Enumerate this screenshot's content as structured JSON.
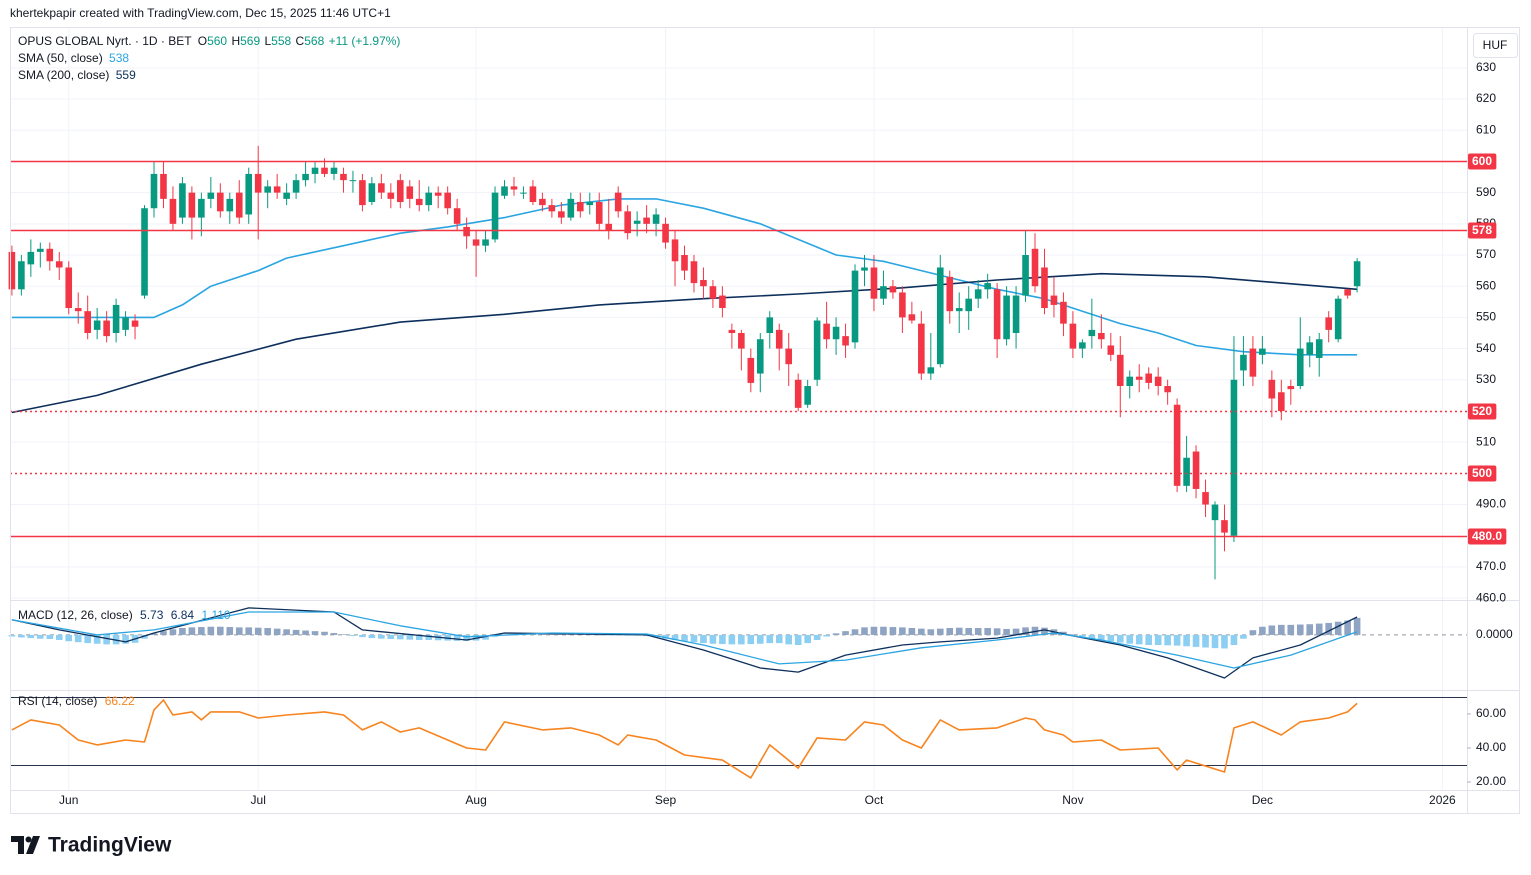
{
  "header": "khertekpapir created with TradingView.com, Dec 15, 2025 11:46 UTC+1",
  "chart_data": [
    {
      "type": "candlestick",
      "title": "OPUS GLOBAL Nyrt. · 1D · BET",
      "legend_letters": [
        "O",
        "H",
        "L",
        "C"
      ],
      "change_label": "+11 (+1.97%)",
      "currency": "HUF",
      "up_color": "#089981",
      "down_color": "#f23645",
      "open": [
        571,
        559,
        567,
        571,
        572,
        568,
        566,
        553,
        552,
        546,
        549,
        545,
        546,
        549,
        557,
        585,
        596,
        588,
        582,
        590,
        582,
        588,
        590,
        584,
        590,
        583,
        596,
        590,
        592,
        588,
        590,
        594,
        596,
        598,
        596,
        596,
        594,
        594,
        587,
        593,
        590,
        594,
        592,
        588,
        586,
        590,
        590,
        585,
        579,
        575,
        573,
        575,
        589,
        592,
        590,
        592,
        588,
        586,
        584,
        582,
        587,
        586,
        587,
        580,
        590,
        584,
        580,
        582,
        580,
        580,
        575,
        570,
        568,
        562,
        560,
        557,
        546,
        545,
        537,
        532,
        545,
        546,
        540,
        530,
        522,
        530,
        548,
        543,
        544,
        542,
        565,
        566,
        556,
        560,
        558,
        551,
        548,
        532,
        535,
        563,
        552,
        552,
        556,
        559,
        559,
        543,
        545,
        557,
        572,
        566,
        557,
        555,
        548,
        540,
        544,
        545,
        541,
        538,
        528,
        531,
        532,
        531,
        528,
        522,
        496,
        507,
        494,
        485,
        485,
        480,
        533,
        540,
        538,
        530,
        526,
        528,
        528,
        538,
        537,
        550,
        543,
        559,
        560
      ],
      "high": [
        573,
        570,
        575,
        574,
        574,
        571,
        568,
        558,
        557,
        553,
        552,
        556,
        552,
        551,
        586,
        600,
        600,
        592,
        595,
        592,
        590,
        595,
        593,
        590,
        594,
        598,
        605,
        594,
        596,
        593,
        596,
        600,
        600,
        601,
        600,
        598,
        597,
        596,
        595,
        596,
        593,
        596,
        594,
        594,
        592,
        592,
        592,
        588,
        582,
        578,
        578,
        592,
        594,
        595,
        592,
        594,
        590,
        588,
        587,
        590,
        590,
        590,
        590,
        588,
        592,
        586,
        584,
        586,
        585,
        582,
        578,
        573,
        570,
        566,
        562,
        560,
        548,
        546,
        540,
        545,
        552,
        548,
        545,
        532,
        530,
        550,
        555,
        550,
        548,
        567,
        570,
        570,
        565,
        562,
        560,
        555,
        552,
        545,
        570,
        565,
        558,
        560,
        562,
        564,
        561,
        560,
        560,
        578,
        577,
        572,
        563,
        558,
        552,
        543,
        556,
        551,
        545,
        544,
        533,
        535,
        534,
        534,
        530,
        524,
        512,
        509,
        498,
        491,
        490,
        544,
        544,
        544,
        544,
        533,
        530,
        530,
        550,
        544,
        545,
        552,
        557,
        559,
        569
      ],
      "low": [
        557,
        557,
        563,
        566,
        565,
        562,
        551,
        548,
        543,
        543,
        542,
        542,
        544,
        543,
        556,
        582,
        585,
        578,
        580,
        575,
        576,
        585,
        582,
        580,
        580,
        580,
        575,
        585,
        588,
        586,
        588,
        592,
        593,
        595,
        594,
        590,
        590,
        584,
        586,
        588,
        585,
        585,
        585,
        584,
        584,
        585,
        583,
        578,
        572,
        563,
        571,
        574,
        588,
        589,
        588,
        586,
        584,
        582,
        580,
        581,
        582,
        583,
        578,
        575,
        582,
        575,
        576,
        577,
        576,
        572,
        560,
        562,
        558,
        556,
        553,
        550,
        540,
        533,
        526,
        526,
        540,
        533,
        528,
        520,
        521,
        528,
        540,
        538,
        537,
        540,
        560,
        552,
        554,
        556,
        545,
        548,
        530,
        530,
        534,
        548,
        545,
        546,
        553,
        556,
        537,
        541,
        540,
        555,
        558,
        551,
        550,
        544,
        537,
        537,
        540,
        540,
        536,
        518,
        524,
        526,
        527,
        525,
        522,
        494,
        494,
        492,
        486,
        466,
        475,
        478,
        528,
        528,
        535,
        518,
        517,
        522,
        527,
        534,
        531,
        542,
        542,
        556,
        558
      ],
      "close": [
        559,
        568,
        571,
        572,
        568,
        566,
        553,
        552,
        545,
        549,
        544,
        554,
        550,
        547,
        585,
        596,
        588,
        580,
        593,
        582,
        588,
        590,
        584,
        588,
        582,
        596,
        590,
        592,
        590,
        590,
        594,
        596,
        598,
        596,
        598,
        594,
        594,
        586,
        593,
        590,
        588,
        587,
        588,
        586,
        590,
        589,
        585,
        580,
        576,
        573,
        575,
        590,
        592,
        591,
        590,
        587,
        586,
        584,
        582,
        588,
        584,
        587,
        580,
        578,
        584,
        577,
        581,
        580,
        583,
        574,
        568,
        565,
        561,
        560,
        556,
        553,
        545,
        540,
        529,
        543,
        550,
        540,
        535,
        521,
        528,
        549,
        543,
        547,
        541,
        565,
        566,
        556,
        560,
        558,
        550,
        549,
        532,
        534,
        566,
        552,
        553,
        556,
        559,
        561,
        543,
        557,
        557,
        570,
        560,
        553,
        554,
        548,
        540,
        542,
        546,
        543,
        538,
        528,
        531,
        530,
        529,
        528,
        526,
        496,
        505,
        495,
        490,
        490,
        481,
        530,
        538,
        531,
        540,
        524,
        520,
        527,
        540,
        542,
        543,
        546,
        556,
        557,
        568
      ],
      "lines": [
        {
          "name": "SMA (50, close)",
          "color": "#2aa5e2",
          "legend_value": 538,
          "x": [
            0,
            15,
            18,
            21,
            26,
            29,
            35,
            41,
            46,
            52,
            58,
            64,
            68,
            73,
            79,
            83,
            87,
            92,
            96,
            100,
            104,
            109,
            113,
            117,
            121,
            125,
            130,
            136,
            142
          ],
          "values": [
            550,
            550,
            554,
            560,
            565,
            569,
            573,
            577,
            579,
            582,
            586,
            588,
            588,
            585,
            580,
            575,
            570,
            568,
            565,
            562,
            559,
            556,
            552,
            548,
            545,
            541,
            539,
            538,
            538
          ]
        },
        {
          "name": "SMA (200, close)",
          "color": "#0d2f5c",
          "legend_value": 559,
          "x": [
            0,
            9,
            20,
            30,
            41,
            52,
            62,
            73,
            83,
            94,
            104,
            115,
            126,
            136,
            142
          ],
          "values": [
            519.5,
            525,
            535,
            543,
            548.5,
            551,
            554,
            556,
            557.5,
            559.5,
            562,
            564,
            563,
            560.5,
            559
          ]
        }
      ],
      "level_color": "#f23645",
      "levels": [
        {
          "value": 600,
          "style": "solid"
        },
        {
          "value": 578,
          "style": "solid"
        },
        {
          "value": 520,
          "style": "dotted"
        },
        {
          "value": 500,
          "style": "dotted"
        },
        {
          "value": 480,
          "label": "480.0",
          "style": "solid"
        }
      ],
      "ylim": [
        459.4,
        643.1
      ],
      "yticks": [
        {
          "value": 460,
          "label": "460.0"
        },
        {
          "value": 470,
          "label": "470.0"
        },
        {
          "value": 490,
          "label": "490.0"
        },
        510,
        530,
        540,
        550,
        560,
        570,
        580,
        590,
        610,
        620,
        630
      ],
      "grid": true,
      "grid_color": "#f0f3fa",
      "xlim": [
        -0.2,
        153.6
      ],
      "xticks": [
        {
          "value": 6,
          "label": "Jun"
        },
        {
          "value": 26,
          "label": "Jul"
        },
        {
          "value": 49,
          "label": "Aug"
        },
        {
          "value": 69,
          "label": "Sep"
        },
        {
          "value": 91,
          "label": "Oct"
        },
        {
          "value": 112,
          "label": "Nov"
        },
        {
          "value": 132,
          "label": "Dec"
        },
        {
          "value": 151,
          "label": "2026"
        }
      ]
    },
    {
      "type": "macd",
      "title": "MACD (12, 26, close)",
      "legend_values": [
        5.73,
        6.84,
        {
          "value": 1.11,
          "label": "1.110"
        }
      ],
      "legend_colors": [
        "#0d2f5c",
        "#0d2f5c",
        "#2aa5e2"
      ],
      "histogram": {
        "up_color": "#8fa3c2",
        "down_color": "#8ccff2",
        "values": [
          -0.5,
          -0.8,
          -1,
          -1.2,
          -1.3,
          -1.6,
          -2,
          -2.3,
          -2.6,
          -2.8,
          -3,
          -3,
          -2.8,
          -2.5,
          -1.2,
          0.5,
          1.2,
          1.8,
          2.2,
          2.4,
          2.5,
          2.6,
          2.6,
          2.5,
          2.4,
          2.4,
          2.3,
          2.2,
          2,
          1.8,
          1.6,
          1.4,
          1.2,
          1,
          0.6,
          0.2,
          -0.3,
          -0.7,
          -1,
          -1.2,
          -1.3,
          -1.4,
          -1.5,
          -1.6,
          -1.6,
          -1.7,
          -1.8,
          -1.9,
          -1.9,
          -1.8,
          -1.5,
          -0.6,
          -0.2,
          0.2,
          0.4,
          0.5,
          0.5,
          0.4,
          0.3,
          0.2,
          0.2,
          0.1,
          0,
          -0.1,
          -0.1,
          -0.2,
          -0.2,
          -0.4,
          -0.8,
          -1.2,
          -1.6,
          -2,
          -2.3,
          -2.6,
          -2.8,
          -2.9,
          -3,
          -3,
          -2.9,
          -2.8,
          -2.6,
          -2.6,
          -3,
          -3.2,
          -2.6,
          -1.6,
          -0.5,
          0.5,
          1.2,
          1.8,
          2.4,
          2.6,
          2.6,
          2.5,
          2.4,
          2.2,
          2,
          1.8,
          2,
          2.2,
          2.3,
          2.2,
          2.2,
          2.2,
          2.1,
          1.9,
          2,
          2.4,
          2.6,
          2.3,
          1.8,
          1,
          0.2,
          -0.6,
          -1.2,
          -1.6,
          -2,
          -2.4,
          -2.8,
          -3,
          -3.2,
          -3.2,
          -3.3,
          -3.4,
          -3.6,
          -3.8,
          -4,
          -4.2,
          -4.3,
          -3.2,
          -1.2,
          1.5,
          2.6,
          3,
          3.2,
          3.2,
          3.3,
          3.4,
          3.6,
          3.8,
          4.2,
          4.6,
          5.4
        ]
      },
      "macd_line": {
        "color": "#0d2f5c",
        "x": [
          0,
          5,
          12,
          15,
          25,
          34,
          37,
          48,
          52,
          67,
          73,
          79,
          83,
          88,
          94,
          98,
          104,
          109,
          112,
          117,
          122,
          128,
          131,
          136,
          142
        ],
        "values": [
          4.8,
          1.6,
          -2.2,
          0.6,
          8.6,
          7.3,
          1.6,
          -1.6,
          0.6,
          0,
          -4.8,
          -10.5,
          -11.8,
          -6.4,
          -3.2,
          -2.2,
          -1,
          1.6,
          -0.3,
          -3.2,
          -7.3,
          -13.7,
          -7.3,
          -3.2,
          5.7
        ]
      },
      "signal_line": {
        "color": "#2aa5e2",
        "x": [
          0,
          9,
          15,
          25,
          34,
          41,
          48,
          57,
          67,
          73,
          81,
          88,
          96,
          104,
          110,
          115,
          123,
          129,
          135,
          142
        ],
        "values": [
          4.8,
          0,
          1.6,
          7.3,
          7.3,
          2.9,
          -0.6,
          0.6,
          0.3,
          -3.2,
          -9.2,
          -8,
          -4.1,
          -1.6,
          0.6,
          -1.6,
          -6.4,
          -10.5,
          -6.4,
          1
        ]
      },
      "ylim": [
        -17.5,
        11.1
      ],
      "yticks": [
        {
          "value": 0,
          "label": "0.0000"
        }
      ]
    },
    {
      "type": "rsi",
      "title": "RSI (14, close)",
      "legend_value": 66.22,
      "color": "#f7841e",
      "band_color": "#2a3550",
      "bands": [
        70,
        30
      ],
      "x": [
        0,
        2,
        5,
        7,
        9,
        12,
        14,
        15,
        16,
        17,
        19,
        20,
        21,
        24,
        26,
        29,
        33,
        35,
        37,
        39,
        41,
        43,
        46,
        48,
        50,
        52,
        56,
        59,
        62,
        64,
        65,
        68,
        71,
        75,
        78,
        80,
        83,
        85,
        88,
        90,
        92,
        94,
        96,
        98,
        100,
        104,
        107,
        108,
        109,
        111,
        112,
        115,
        117,
        121,
        123,
        124,
        128,
        129,
        131,
        134,
        136,
        139,
        141,
        142
      ],
      "values": [
        50.6,
        56.5,
        53.5,
        44.7,
        41.8,
        44.7,
        43.5,
        62.4,
        68.2,
        59.4,
        61.2,
        56.5,
        61.2,
        61.2,
        57.6,
        59.4,
        61.2,
        59.4,
        50.6,
        55.3,
        49.4,
        51.8,
        44.7,
        40,
        38.8,
        55.3,
        50.6,
        51.8,
        47.6,
        41.8,
        47.6,
        44.7,
        35.9,
        32.9,
        22.4,
        41.8,
        28.2,
        45.9,
        44.7,
        55.3,
        53.5,
        44.7,
        40,
        56.5,
        50.6,
        51.8,
        57.6,
        56.5,
        50.6,
        47.6,
        43.5,
        44.7,
        38.8,
        40,
        27.1,
        32.9,
        25.9,
        51.8,
        55.3,
        47.6,
        55.3,
        57.6,
        61.2,
        66.2
      ],
      "ylim": [
        15.3,
        72.9
      ],
      "yticks": [
        {
          "value": 20,
          "label": "20.00"
        },
        {
          "value": 40,
          "label": "40.00"
        },
        {
          "value": 60,
          "label": "60.00"
        }
      ]
    }
  ],
  "footer": {
    "logo": "TradingView"
  }
}
